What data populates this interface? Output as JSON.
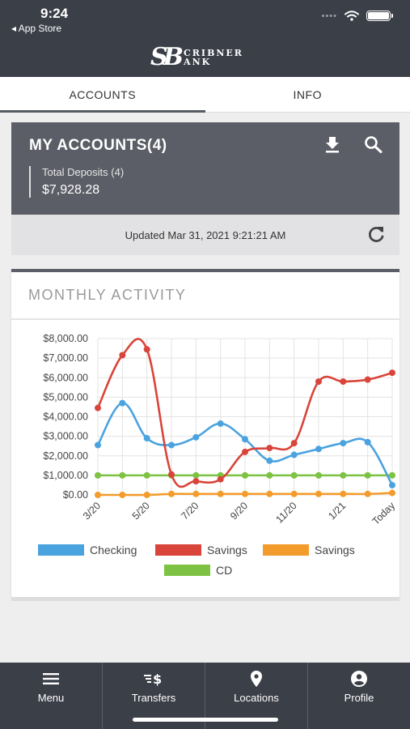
{
  "status_bar": {
    "time": "9:24",
    "back_label": "◂ App Store"
  },
  "logo": {
    "mark": "SB",
    "line1": "CRIBNER",
    "line2": "ANK"
  },
  "tabs": [
    {
      "label": "ACCOUNTS",
      "active": true
    },
    {
      "label": "INFO",
      "active": false
    }
  ],
  "accounts": {
    "title": "MY ACCOUNTS(4)",
    "deposits_label": "Total Deposits (4)",
    "deposits_value": "$7,928.28",
    "icons": [
      "download-icon",
      "search-icon"
    ],
    "updated": "Updated Mar 31, 2021 9:21:21 AM"
  },
  "activity": {
    "title": "MONTHLY ACTIVITY"
  },
  "chart_data": {
    "type": "line",
    "y_ticks": [
      "$8,000.00",
      "$7,000.00",
      "$6,000.00",
      "$5,000.00",
      "$4,000.00",
      "$3,000.00",
      "$2,000.00",
      "$1,000.00",
      "$0.00"
    ],
    "ylim": [
      0,
      8000
    ],
    "x_tick_labels": [
      "3/20",
      "5/20",
      "7/20",
      "9/20",
      "11/20",
      "1/21",
      "Today"
    ],
    "grid": true,
    "legend_position": "bottom",
    "series": [
      {
        "name": "Checking",
        "color": "#4aa3df",
        "values": [
          2550,
          4700,
          2900,
          2550,
          2950,
          3650,
          2850,
          1750,
          2050,
          2350,
          2650,
          2700,
          500
        ]
      },
      {
        "name": "Savings",
        "color": "#d9453a",
        "values": [
          4450,
          7150,
          7450,
          1050,
          700,
          800,
          2200,
          2400,
          2650,
          5800,
          5800,
          5900,
          6250
        ]
      },
      {
        "name": "Savings",
        "color": "#f39c2b",
        "values": [
          0,
          0,
          0,
          50,
          50,
          50,
          50,
          50,
          50,
          50,
          50,
          50,
          100
        ]
      },
      {
        "name": "CD",
        "color": "#7dc243",
        "values": [
          1000,
          1000,
          1000,
          1000,
          1000,
          1000,
          1000,
          1000,
          1000,
          1000,
          1000,
          1000,
          1000
        ]
      }
    ]
  },
  "nav": [
    {
      "label": "Menu",
      "icon": "menu-icon"
    },
    {
      "label": "Transfers",
      "icon": "transfers-icon"
    },
    {
      "label": "Locations",
      "icon": "location-pin-icon"
    },
    {
      "label": "Profile",
      "icon": "profile-icon"
    }
  ]
}
